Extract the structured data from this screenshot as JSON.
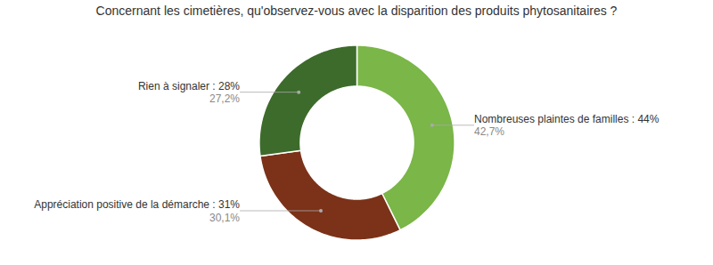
{
  "chart_data": {
    "type": "pie",
    "title": "Concernant les cimetières, qu'observez-vous avec la disparition des produits phytosanitaires ?",
    "categories": [
      "Nombreuses plaintes de familles : 44%",
      "Appréciation positive de la démarche : 31%",
      "Rien à signaler : 28%"
    ],
    "values": [
      42.7,
      30.1,
      27.2
    ],
    "value_labels": [
      "42,7%",
      "30,1%",
      "27,2%"
    ],
    "colors": [
      "#7ab648",
      "#7b3219",
      "#3d6b2c"
    ],
    "data_labels": true
  }
}
